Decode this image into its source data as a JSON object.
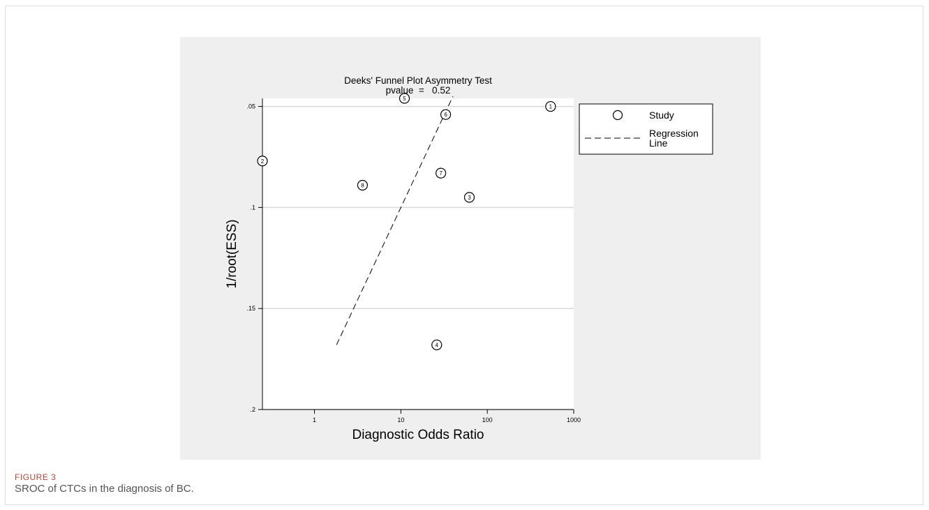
{
  "figure": {
    "label": "FIGURE 3",
    "caption": "SROC of CTCs in the diagnosis of BC."
  },
  "chart_data": {
    "type": "scatter",
    "title": "Deeks' Funnel Plot Asymmetry Test",
    "subtitle": "pvalue  =   0.52",
    "xlabel": "Diagnostic Odds Ratio",
    "ylabel": "1/root(ESS)",
    "x_scale": "log",
    "x_ticks": [
      1,
      10,
      100,
      1000
    ],
    "x_tick_labels": [
      "1",
      "10",
      "100",
      "1000"
    ],
    "xlim": [
      0.25,
      1000
    ],
    "y_reversed": true,
    "y_ticks": [
      0.05,
      0.1,
      0.15,
      0.2
    ],
    "y_tick_labels": [
      ".05",
      ".1",
      ".15",
      ".2"
    ],
    "ylim": [
      0.046,
      0.2
    ],
    "grid": "horizontal",
    "legend_position": "right",
    "legend": [
      {
        "symbol": "circle",
        "label_lines": [
          "Study"
        ]
      },
      {
        "symbol": "dashed-line",
        "label_lines": [
          "Regression",
          "Line"
        ]
      }
    ],
    "points": [
      {
        "label": "1",
        "x": 540,
        "y": 0.05
      },
      {
        "label": "2",
        "x": 0.25,
        "y": 0.077
      },
      {
        "label": "3",
        "x": 62,
        "y": 0.095
      },
      {
        "label": "4",
        "x": 26,
        "y": 0.168
      },
      {
        "label": "5",
        "x": 11,
        "y": 0.046
      },
      {
        "label": "6",
        "x": 33,
        "y": 0.054
      },
      {
        "label": "7",
        "x": 29,
        "y": 0.083
      },
      {
        "label": "8",
        "x": 3.6,
        "y": 0.089
      }
    ],
    "regression_line": [
      {
        "x": 1.8,
        "y": 0.168
      },
      {
        "x": 40,
        "y": 0.045
      }
    ],
    "colors": {
      "panel_background": "#efefef",
      "plot_background": "#ffffff",
      "grid": "#d9d9d9",
      "ink": "#000000"
    }
  }
}
